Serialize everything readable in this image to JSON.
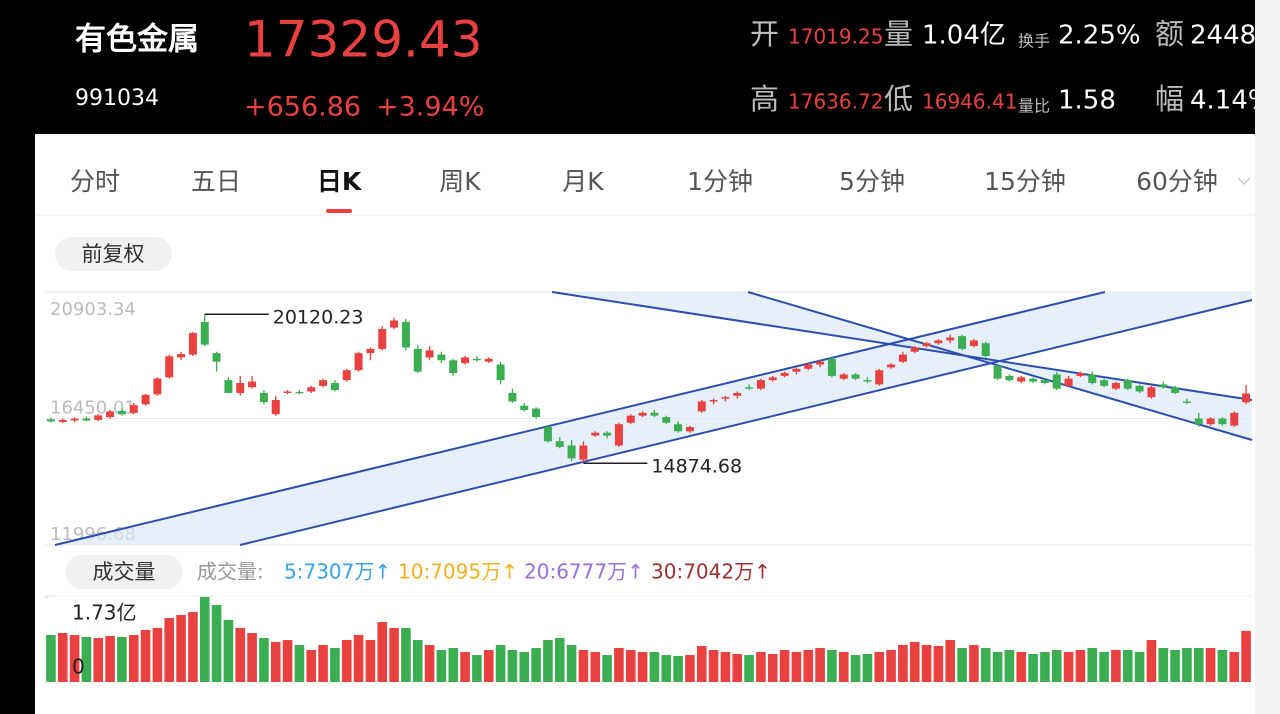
{
  "header": {
    "name": "有色金属",
    "code": "991034",
    "price": "17329.43",
    "change": "+656.86",
    "change_pct": "+3.94%",
    "stats": [
      [
        {
          "label": "开",
          "value": "17019.25"
        },
        {
          "label": "量",
          "value": "1.04亿"
        },
        {
          "label": "换手",
          "value": "2.25%"
        },
        {
          "label": "额",
          "value": "2448"
        }
      ],
      [
        {
          "label": "高",
          "value": "17636.72"
        },
        {
          "label": "低",
          "value": "16946.41"
        },
        {
          "label": "量比",
          "value": "1.58"
        },
        {
          "label": "幅",
          "value": "4.14%"
        }
      ]
    ]
  },
  "tabs": {
    "items": [
      "分时",
      "五日",
      "日K",
      "周K",
      "月K",
      "1分钟",
      "5分钟",
      "15分钟",
      "60分钟"
    ],
    "active": 2
  },
  "adjust_button": "前复权",
  "price_chart": {
    "type": "candlestick",
    "ylim": [
      11996.68,
      20903.34
    ],
    "yticks": [
      20903.34,
      16450.01,
      11996.68
    ],
    "up_color": "#e8413f",
    "down_color": "#3cae52",
    "candles": [
      [
        16420,
        16480,
        16300,
        16350
      ],
      [
        16330,
        16450,
        16280,
        16400
      ],
      [
        16380,
        16500,
        16320,
        16440
      ],
      [
        16450,
        16520,
        16350,
        16380
      ],
      [
        16400,
        16600,
        16360,
        16560
      ],
      [
        16500,
        16750,
        16450,
        16700
      ],
      [
        16720,
        16800,
        16550,
        16600
      ],
      [
        16650,
        17000,
        16600,
        16920
      ],
      [
        16950,
        17320,
        16900,
        17280
      ],
      [
        17300,
        17900,
        17250,
        17860
      ],
      [
        17900,
        18700,
        17850,
        18640
      ],
      [
        18600,
        18800,
        18500,
        18720
      ],
      [
        18700,
        19500,
        18650,
        19460
      ],
      [
        19850,
        20120.23,
        19000,
        19050
      ],
      [
        18750,
        18800,
        18100,
        18450
      ],
      [
        17800,
        17900,
        17350,
        17350
      ],
      [
        17350,
        17950,
        17250,
        17700
      ],
      [
        17550,
        17950,
        17500,
        17750
      ],
      [
        17350,
        17450,
        16950,
        17030
      ],
      [
        16600,
        17250,
        16550,
        17100
      ],
      [
        17350,
        17450,
        17300,
        17400
      ],
      [
        17380,
        17450,
        17300,
        17350
      ],
      [
        17400,
        17600,
        17350,
        17550
      ],
      [
        17600,
        17850,
        17550,
        17800
      ],
      [
        17700,
        17800,
        17400,
        17450
      ],
      [
        17800,
        18200,
        17750,
        18150
      ],
      [
        18150,
        18800,
        18100,
        18750
      ],
      [
        18750,
        18950,
        18500,
        18900
      ],
      [
        18900,
        19700,
        18850,
        19600
      ],
      [
        19650,
        20000,
        19600,
        19900
      ],
      [
        19850,
        19950,
        18850,
        18950
      ],
      [
        18900,
        19050,
        18050,
        18100
      ],
      [
        18600,
        19000,
        18500,
        18850
      ],
      [
        18700,
        18800,
        18400,
        18500
      ],
      [
        18500,
        18550,
        17950,
        18050
      ],
      [
        18400,
        18650,
        18350,
        18600
      ],
      [
        18550,
        18650,
        18450,
        18500
      ],
      [
        18450,
        18600,
        18400,
        18550
      ],
      [
        18350,
        18450,
        17650,
        17800
      ],
      [
        17350,
        17500,
        17000,
        17050
      ],
      [
        16900,
        17000,
        16700,
        16750
      ],
      [
        16800,
        16850,
        16450,
        16500
      ],
      [
        16150,
        16200,
        15600,
        15650
      ],
      [
        15650,
        15800,
        15400,
        15450
      ],
      [
        15500,
        15700,
        14950,
        15050
      ],
      [
        15000,
        15650,
        14874.68,
        15500
      ],
      [
        15850,
        16000,
        15800,
        15950
      ],
      [
        15950,
        16000,
        15750,
        15850
      ],
      [
        15500,
        16300,
        15450,
        16250
      ],
      [
        16300,
        16600,
        16250,
        16550
      ],
      [
        16550,
        16700,
        16500,
        16650
      ],
      [
        16650,
        16750,
        16500,
        16550
      ],
      [
        16500,
        16550,
        16250,
        16300
      ],
      [
        16250,
        16350,
        15950,
        16000
      ],
      [
        16000,
        16200,
        15950,
        16150
      ],
      [
        16700,
        17100,
        16650,
        17050
      ],
      [
        17050,
        17150,
        16950,
        17100
      ],
      [
        17150,
        17250,
        17050,
        17200
      ],
      [
        17250,
        17400,
        17150,
        17350
      ],
      [
        17550,
        17650,
        17450,
        17500
      ],
      [
        17500,
        17850,
        17450,
        17800
      ],
      [
        17800,
        17950,
        17750,
        17900
      ],
      [
        17950,
        18100,
        17900,
        18050
      ],
      [
        18100,
        18250,
        18000,
        18200
      ],
      [
        18200,
        18400,
        18150,
        18350
      ],
      [
        18350,
        18500,
        18250,
        18450
      ],
      [
        18550,
        18600,
        17900,
        17950
      ],
      [
        17850,
        18050,
        17800,
        18000
      ],
      [
        18000,
        18050,
        17800,
        17850
      ],
      [
        17800,
        17900,
        17700,
        17750
      ],
      [
        17650,
        18200,
        17600,
        18150
      ],
      [
        18250,
        18400,
        18200,
        18350
      ],
      [
        18450,
        18800,
        18400,
        18700
      ],
      [
        18800,
        19000,
        18750,
        18950
      ],
      [
        19000,
        19150,
        18950,
        19100
      ],
      [
        19100,
        19250,
        19050,
        19200
      ],
      [
        19200,
        19400,
        19100,
        19300
      ],
      [
        19350,
        19400,
        18850,
        18900
      ],
      [
        19000,
        19250,
        18950,
        19200
      ],
      [
        19100,
        19150,
        18600,
        18650
      ],
      [
        18300,
        18350,
        17800,
        17850
      ],
      [
        17950,
        18000,
        17750,
        17800
      ],
      [
        17750,
        17950,
        17700,
        17900
      ],
      [
        17850,
        17900,
        17700,
        17750
      ],
      [
        17800,
        17850,
        17650,
        17700
      ],
      [
        18000,
        18100,
        17450,
        17500
      ],
      [
        17600,
        17950,
        17550,
        17850
      ],
      [
        17950,
        18100,
        17900,
        18050
      ],
      [
        18000,
        18100,
        17650,
        17700
      ],
      [
        17800,
        17850,
        17550,
        17600
      ],
      [
        17500,
        17750,
        17450,
        17700
      ],
      [
        17800,
        17850,
        17450,
        17500
      ],
      [
        17600,
        17650,
        17350,
        17400
      ],
      [
        17200,
        17600,
        17150,
        17550
      ],
      [
        17650,
        17750,
        17500,
        17550
      ],
      [
        17550,
        17600,
        17300,
        17350
      ],
      [
        17050,
        17150,
        16950,
        17000
      ],
      [
        16450,
        16650,
        16150,
        16250
      ],
      [
        16250,
        16500,
        16200,
        16450
      ],
      [
        16450,
        16500,
        16200,
        16250
      ],
      [
        16200,
        16700,
        16150,
        16650
      ],
      [
        17019.25,
        17636.72,
        16946.41,
        17329.43
      ]
    ]
  },
  "volume_chart": {
    "type": "bar",
    "button": "成交量",
    "legend_title": "成交量:",
    "legend": [
      {
        "label": "5:7307万↑",
        "color": "#3aa0e8"
      },
      {
        "label": "10:7095万↑",
        "color": "#f0b020"
      },
      {
        "label": "20:6777万↑",
        "color": "#9b6fe0"
      },
      {
        "label": "30:7042万↑",
        "color": "#a03030"
      }
    ],
    "ylim": [
      0,
      173000000
    ],
    "yticks": [
      {
        "value": 173000000,
        "label": "1.73亿"
      },
      0
    ],
    "values": [
      95600000,
      99700000,
      95600000,
      91600000,
      89500000,
      93600000,
      91600000,
      95600000,
      105800000,
      109900000,
      130200000,
      136300000,
      142400000,
      173000000,
      156700000,
      126200000,
      109900000,
      99700000,
      89500000,
      81400000,
      85500000,
      75300000,
      65100000,
      75300000,
      69200000,
      85500000,
      95600000,
      85500000,
      122100000,
      109900000,
      109900000,
      85500000,
      75300000,
      65100000,
      69200000,
      61100000,
      54900000,
      65100000,
      75300000,
      65100000,
      61100000,
      69200000,
      85500000,
      89500000,
      75300000,
      65100000,
      61100000,
      54900000,
      69200000,
      65100000,
      61100000,
      61100000,
      54900000,
      52900000,
      54900000,
      73300000,
      65100000,
      61100000,
      57000000,
      54900000,
      61100000,
      57000000,
      65100000,
      61100000,
      65100000,
      69200000,
      65100000,
      61100000,
      54900000,
      57000000,
      61100000,
      65100000,
      75300000,
      81400000,
      75300000,
      73300000,
      85500000,
      69200000,
      75300000,
      69200000,
      61100000,
      65100000,
      61100000,
      57000000,
      61100000,
      65100000,
      61100000,
      65100000,
      69200000,
      61100000,
      65100000,
      65100000,
      61100000,
      85500000,
      69200000,
      65100000,
      69200000,
      69200000,
      69200000,
      65100000,
      61100000,
      104000000
    ]
  }
}
